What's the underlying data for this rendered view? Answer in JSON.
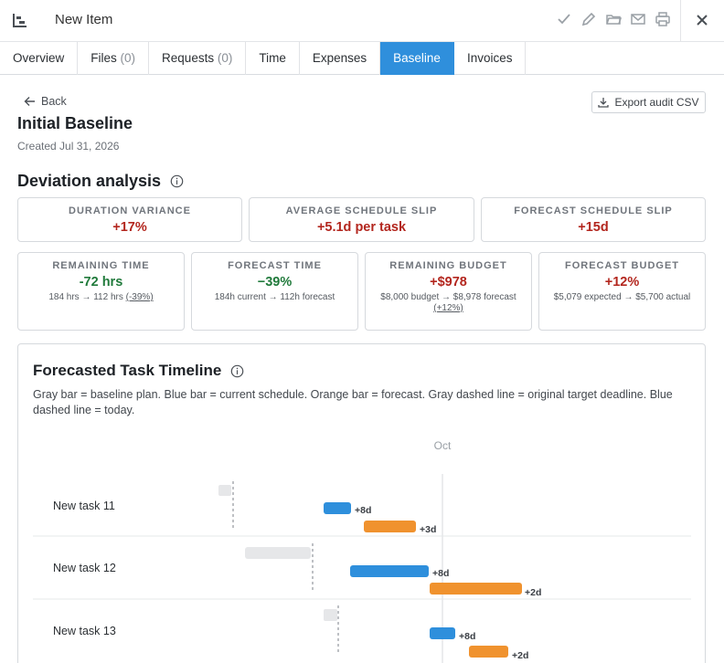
{
  "header": {
    "title": "New Item",
    "actions": [
      "check-icon",
      "pencil-icon",
      "folder-icon",
      "mail-icon",
      "printer-icon"
    ],
    "close_icon": "close-icon"
  },
  "tabs": [
    {
      "label": "Overview",
      "count": ""
    },
    {
      "label": "Files",
      "count": "(0)"
    },
    {
      "label": "Requests",
      "count": "(0)"
    },
    {
      "label": "Time",
      "count": ""
    },
    {
      "label": "Expenses",
      "count": ""
    },
    {
      "label": "Baseline",
      "count": "",
      "active": true
    },
    {
      "label": "Invoices",
      "count": ""
    }
  ],
  "page": {
    "back_label": "Back",
    "export_label": "Export audit CSV",
    "title": "Initial Baseline",
    "created": "Created Jul 31, 2026",
    "deviation_heading": "Deviation analysis"
  },
  "metrics_top": [
    {
      "label": "DURATION VARIANCE",
      "value": "+17%",
      "tone": "red"
    },
    {
      "label": "AVERAGE SCHEDULE SLIP",
      "value": "+5.1d per task",
      "tone": "red"
    },
    {
      "label": "FORECAST SCHEDULE SLIP",
      "value": "+15d",
      "tone": "red"
    }
  ],
  "metrics_bottom": [
    {
      "label": "REMAINING TIME",
      "value": "-72 hrs",
      "tone": "green",
      "sub": "184 hrs → 112 hrs",
      "sub_link": "(-39%)"
    },
    {
      "label": "FORECAST TIME",
      "value": "−39%",
      "tone": "green",
      "sub": "184h current → 112h forecast",
      "sub_link": ""
    },
    {
      "label": "REMAINING BUDGET",
      "value": "+$978",
      "tone": "red",
      "sub": "$8,000 budget → $8,978 forecast",
      "sub_link": "(+12%)"
    },
    {
      "label": "FORECAST BUDGET",
      "value": "+12%",
      "tone": "red",
      "sub": "$5,079 expected → $5,700 actual",
      "sub_link": ""
    }
  ],
  "timeline": {
    "title": "Forecasted Task Timeline",
    "description": "Gray bar = baseline plan. Blue bar = current schedule. Orange bar = forecast. Gray dashed line = original target deadline. Blue dashed line = today.",
    "month_label": "Oct",
    "colors": {
      "baseline": "#e6e7e9",
      "current": "#2e8fdc",
      "forecast": "#f0922e",
      "deadline": "#9a9ea4"
    },
    "tasks": [
      {
        "name": "New task 11",
        "current_delta": "+8d",
        "forecast_delta": "+3d"
      },
      {
        "name": "New task 12",
        "current_delta": "+8d",
        "forecast_delta": "+2d"
      },
      {
        "name": "New task 13",
        "current_delta": "+8d",
        "forecast_delta": "+2d"
      }
    ]
  }
}
